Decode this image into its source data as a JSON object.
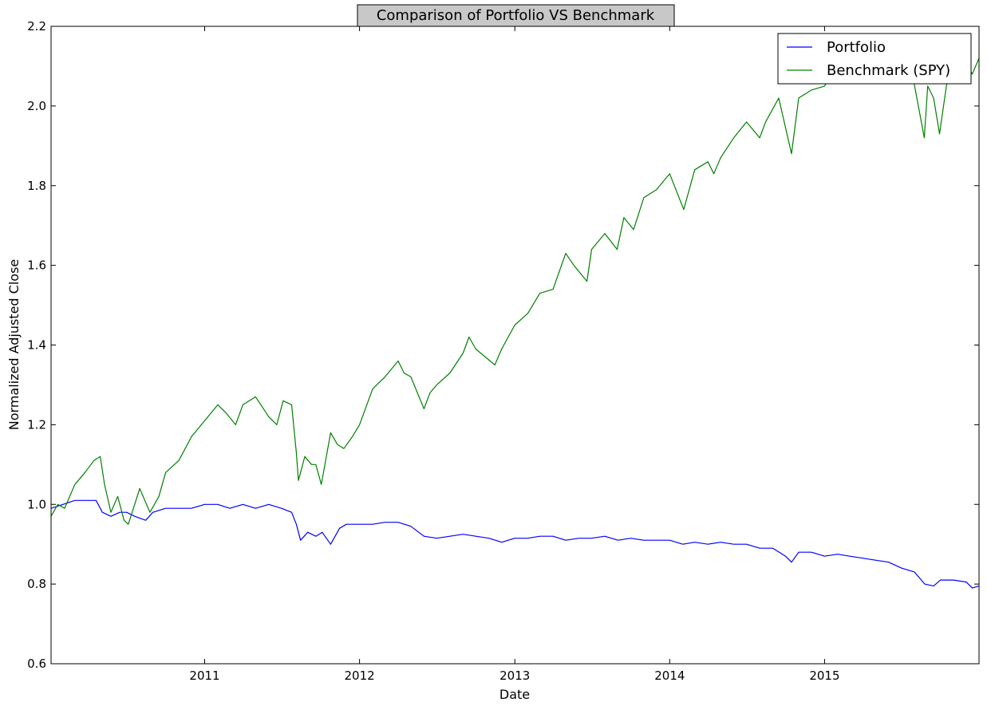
{
  "colors": {
    "portfolio": "#0000ff",
    "benchmark": "#008000",
    "title_box": "#c8c8c8"
  },
  "chart_data": {
    "type": "line",
    "title": "Comparison of Portfolio VS Benchmark",
    "xlabel": "Date",
    "ylabel": "Normalized Adjusted Close",
    "xlim": [
      "2010-01-04",
      "2015-12-31"
    ],
    "ylim": [
      0.6,
      2.2
    ],
    "x_ticks": [
      "2011-01-01",
      "2012-01-01",
      "2013-01-01",
      "2014-01-01",
      "2015-01-01"
    ],
    "x_tick_labels": [
      "2011",
      "2012",
      "2013",
      "2014",
      "2015"
    ],
    "y_ticks": [
      0.6,
      0.8,
      1.0,
      1.2,
      1.4,
      1.6,
      1.8,
      2.0,
      2.2
    ],
    "y_tick_labels": [
      "0.6",
      "0.8",
      "1.0",
      "1.2",
      "1.4",
      "1.6",
      "1.8",
      "2.0",
      "2.2"
    ],
    "grid": false,
    "legend_position": "top-right",
    "series": [
      {
        "name": "Portfolio",
        "color": "#0000ff",
        "x": [
          "2010-01-04",
          "2010-02-01",
          "2010-03-01",
          "2010-04-01",
          "2010-04-20",
          "2010-05-05",
          "2010-05-25",
          "2010-06-15",
          "2010-07-01",
          "2010-07-20",
          "2010-08-15",
          "2010-09-01",
          "2010-10-01",
          "2010-11-01",
          "2010-12-01",
          "2011-01-01",
          "2011-02-01",
          "2011-03-01",
          "2011-04-01",
          "2011-05-01",
          "2011-06-01",
          "2011-07-01",
          "2011-07-25",
          "2011-08-05",
          "2011-08-15",
          "2011-09-01",
          "2011-09-20",
          "2011-10-05",
          "2011-10-25",
          "2011-11-15",
          "2011-12-01",
          "2012-01-01",
          "2012-02-01",
          "2012-03-01",
          "2012-04-01",
          "2012-05-01",
          "2012-06-01",
          "2012-07-01",
          "2012-08-01",
          "2012-09-01",
          "2012-10-01",
          "2012-11-01",
          "2012-12-01",
          "2013-01-01",
          "2013-02-01",
          "2013-03-01",
          "2013-04-01",
          "2013-05-01",
          "2013-06-01",
          "2013-07-01",
          "2013-08-01",
          "2013-09-01",
          "2013-10-01",
          "2013-11-01",
          "2013-12-01",
          "2014-01-01",
          "2014-02-01",
          "2014-03-01",
          "2014-04-01",
          "2014-05-01",
          "2014-06-01",
          "2014-07-01",
          "2014-08-01",
          "2014-09-01",
          "2014-10-01",
          "2014-10-15",
          "2014-11-01",
          "2014-12-01",
          "2015-01-01",
          "2015-02-01",
          "2015-03-01",
          "2015-04-01",
          "2015-05-01",
          "2015-06-01",
          "2015-07-01",
          "2015-08-01",
          "2015-08-25",
          "2015-09-15",
          "2015-10-01",
          "2015-11-01",
          "2015-12-01",
          "2015-12-15",
          "2015-12-31"
        ],
        "values": [
          0.99,
          1.0,
          1.01,
          1.01,
          1.01,
          0.98,
          0.97,
          0.98,
          0.98,
          0.97,
          0.96,
          0.98,
          0.99,
          0.99,
          0.99,
          1.0,
          1.0,
          0.99,
          1.0,
          0.99,
          1.0,
          0.99,
          0.98,
          0.95,
          0.91,
          0.93,
          0.92,
          0.93,
          0.9,
          0.94,
          0.95,
          0.95,
          0.95,
          0.955,
          0.955,
          0.945,
          0.92,
          0.915,
          0.92,
          0.925,
          0.92,
          0.915,
          0.905,
          0.915,
          0.915,
          0.92,
          0.92,
          0.91,
          0.915,
          0.915,
          0.92,
          0.91,
          0.915,
          0.91,
          0.91,
          0.91,
          0.9,
          0.905,
          0.9,
          0.905,
          0.9,
          0.9,
          0.89,
          0.89,
          0.87,
          0.855,
          0.88,
          0.88,
          0.87,
          0.875,
          0.87,
          0.865,
          0.86,
          0.855,
          0.84,
          0.83,
          0.8,
          0.795,
          0.81,
          0.81,
          0.805,
          0.79,
          0.795
        ]
      },
      {
        "name": "Benchmark (SPY)",
        "color": "#008000",
        "x": [
          "2010-01-04",
          "2010-01-20",
          "2010-02-05",
          "2010-03-01",
          "2010-03-25",
          "2010-04-15",
          "2010-04-30",
          "2010-05-10",
          "2010-05-25",
          "2010-06-10",
          "2010-06-25",
          "2010-07-05",
          "2010-07-20",
          "2010-08-01",
          "2010-08-25",
          "2010-09-15",
          "2010-10-01",
          "2010-11-01",
          "2010-12-01",
          "2011-01-01",
          "2011-02-01",
          "2011-02-20",
          "2011-03-15",
          "2011-04-01",
          "2011-05-01",
          "2011-06-01",
          "2011-06-20",
          "2011-07-05",
          "2011-07-25",
          "2011-08-05",
          "2011-08-10",
          "2011-08-25",
          "2011-09-10",
          "2011-09-20",
          "2011-10-03",
          "2011-10-25",
          "2011-11-10",
          "2011-11-25",
          "2011-12-15",
          "2012-01-01",
          "2012-02-01",
          "2012-03-01",
          "2012-04-01",
          "2012-04-15",
          "2012-05-01",
          "2012-06-01",
          "2012-06-15",
          "2012-07-01",
          "2012-08-01",
          "2012-09-01",
          "2012-09-15",
          "2012-10-01",
          "2012-11-15",
          "2012-12-01",
          "2013-01-01",
          "2013-02-01",
          "2013-03-01",
          "2013-04-01",
          "2013-05-01",
          "2013-05-20",
          "2013-06-20",
          "2013-07-01",
          "2013-08-01",
          "2013-08-30",
          "2013-09-15",
          "2013-10-08",
          "2013-11-01",
          "2013-12-01",
          "2014-01-01",
          "2014-02-03",
          "2014-03-01",
          "2014-04-01",
          "2014-04-15",
          "2014-05-01",
          "2014-06-01",
          "2014-07-01",
          "2014-08-01",
          "2014-08-15",
          "2014-09-15",
          "2014-10-15",
          "2014-11-01",
          "2014-12-01",
          "2015-01-01",
          "2015-02-01",
          "2015-03-01",
          "2015-04-01",
          "2015-05-01",
          "2015-06-01",
          "2015-07-01",
          "2015-07-20",
          "2015-08-24",
          "2015-09-01",
          "2015-09-15",
          "2015-09-29",
          "2015-10-15",
          "2015-11-01",
          "2015-12-01",
          "2015-12-15",
          "2015-12-31"
        ],
        "values": [
          0.97,
          1.0,
          0.99,
          1.05,
          1.08,
          1.11,
          1.12,
          1.05,
          0.98,
          1.02,
          0.96,
          0.95,
          1.0,
          1.04,
          0.98,
          1.02,
          1.08,
          1.11,
          1.17,
          1.21,
          1.25,
          1.23,
          1.2,
          1.25,
          1.27,
          1.22,
          1.2,
          1.26,
          1.25,
          1.13,
          1.06,
          1.12,
          1.1,
          1.1,
          1.05,
          1.18,
          1.15,
          1.14,
          1.17,
          1.2,
          1.29,
          1.32,
          1.36,
          1.33,
          1.32,
          1.24,
          1.28,
          1.3,
          1.33,
          1.38,
          1.42,
          1.39,
          1.35,
          1.39,
          1.45,
          1.48,
          1.53,
          1.54,
          1.63,
          1.6,
          1.56,
          1.64,
          1.68,
          1.64,
          1.72,
          1.69,
          1.77,
          1.79,
          1.83,
          1.74,
          1.84,
          1.86,
          1.83,
          1.87,
          1.92,
          1.96,
          1.92,
          1.96,
          2.02,
          1.88,
          2.02,
          2.04,
          2.05,
          2.11,
          2.1,
          2.12,
          2.13,
          2.11,
          2.12,
          2.12,
          1.92,
          2.05,
          2.02,
          1.93,
          2.05,
          2.13,
          2.11,
          2.08,
          2.12
        ]
      }
    ]
  }
}
